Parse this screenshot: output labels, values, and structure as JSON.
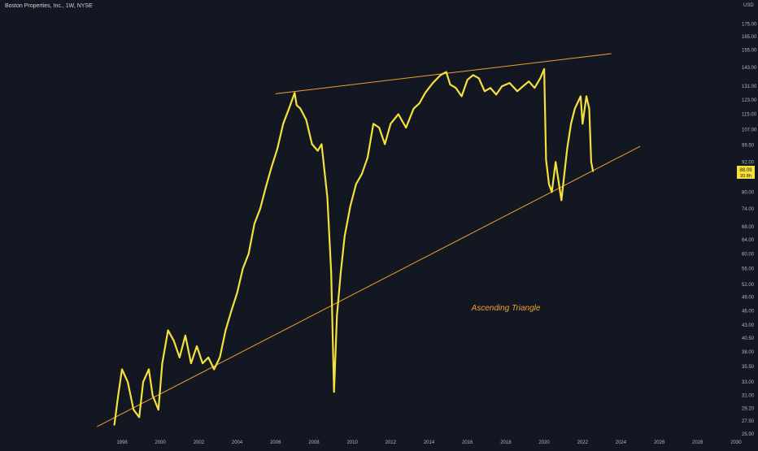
{
  "title": "Boston Properties, Inc., 1W, NYSE",
  "currency": "USD",
  "annotation": "Ascending Triangle",
  "colors": {
    "background": "#131722",
    "price_line": "#f5e13c",
    "trendline": "#f0a030",
    "annotation": "#f0a030",
    "axis_text": "#b2b5be",
    "last_price_bg": "#f5e13c",
    "last_price_text": "#131722"
  },
  "last_price": {
    "price": "88.09",
    "countdown": "20 8h"
  },
  "chart_data": {
    "type": "line",
    "y_scale": "log",
    "ylim": [
      25.9,
      190
    ],
    "xlim": [
      1996.7,
      2030.0
    ],
    "x_ticks": [
      "1998",
      "2000",
      "2002",
      "2004",
      "2006",
      "2008",
      "2010",
      "2012",
      "2014",
      "2016",
      "2018",
      "2020",
      "2022",
      "2024",
      "2026",
      "2028",
      "2030"
    ],
    "y_ticks": [
      "175.00",
      "165.00",
      "155.00",
      "143.00",
      "131.00",
      "123.00",
      "115.00",
      "107.00",
      "99.50",
      "92.00",
      "80.00",
      "74.00",
      "68.00",
      "64.00",
      "60.00",
      "56.00",
      "52.00",
      "49.00",
      "46.00",
      "43.00",
      "40.50",
      "38.00",
      "35.50",
      "33.00",
      "31.00",
      "29.20",
      "27.50",
      "25.90"
    ],
    "series": [
      {
        "x": [
          1997.6,
          1997.8,
          1998.0,
          1998.3,
          1998.6,
          1998.9,
          1999.1,
          1999.4,
          1999.6,
          1999.9,
          2000.1,
          2000.4,
          2000.7,
          2001.0,
          2001.3,
          2001.6,
          2001.9,
          2002.2,
          2002.5,
          2002.8,
          2003.1,
          2003.4,
          2003.7,
          2004.0,
          2004.3,
          2004.6,
          2004.9,
          2005.2,
          2005.5,
          2005.8,
          2006.1,
          2006.4,
          2006.7,
          2007.0,
          2007.1,
          2007.3,
          2007.6,
          2007.9,
          2008.2,
          2008.4,
          2008.7,
          2008.9,
          2009.05,
          2009.2,
          2009.4,
          2009.6,
          2009.9,
          2010.2,
          2010.5,
          2010.8,
          2011.1,
          2011.4,
          2011.7,
          2012.0,
          2012.4,
          2012.8,
          2013.2,
          2013.5,
          2013.8,
          2014.2,
          2014.6,
          2014.9,
          2015.1,
          2015.4,
          2015.7,
          2016.0,
          2016.3,
          2016.6,
          2016.9,
          2017.2,
          2017.5,
          2017.8,
          2018.2,
          2018.6,
          2018.9,
          2019.2,
          2019.5,
          2019.8,
          2020.0,
          2020.1,
          2020.25,
          2020.4,
          2020.6,
          2020.9,
          2021.2,
          2021.4,
          2021.6,
          2021.9,
          2022.0,
          2022.2,
          2022.35,
          2022.45,
          2022.55
        ],
        "y": [
          27,
          31,
          35,
          33,
          29,
          28,
          33,
          35,
          31,
          29,
          36,
          42,
          40,
          37,
          41,
          36,
          39,
          36,
          37,
          35,
          37,
          42,
          46,
          50,
          56,
          60,
          69,
          74,
          82,
          90,
          98,
          110,
          118,
          127,
          120,
          118,
          112,
          100,
          97,
          100,
          78,
          55,
          31.5,
          45,
          55,
          65,
          75,
          83,
          87,
          94,
          110,
          108,
          100,
          110,
          115,
          108,
          118,
          121,
          127,
          133,
          138,
          140,
          132,
          130,
          125,
          135,
          138,
          136,
          128,
          130,
          126,
          131,
          133,
          128,
          131,
          134,
          130,
          136,
          142,
          93,
          83,
          80,
          92,
          77,
          98,
          110,
          118,
          125,
          110,
          125,
          118,
          92,
          88.09
        ]
      }
    ],
    "trendlines": [
      {
        "from": [
          2006.0,
          126.5
        ],
        "to": [
          2023.5,
          152.5
        ]
      },
      {
        "from": [
          1996.7,
          26.8
        ],
        "to": [
          2025.0,
          99.0
        ]
      }
    ]
  }
}
